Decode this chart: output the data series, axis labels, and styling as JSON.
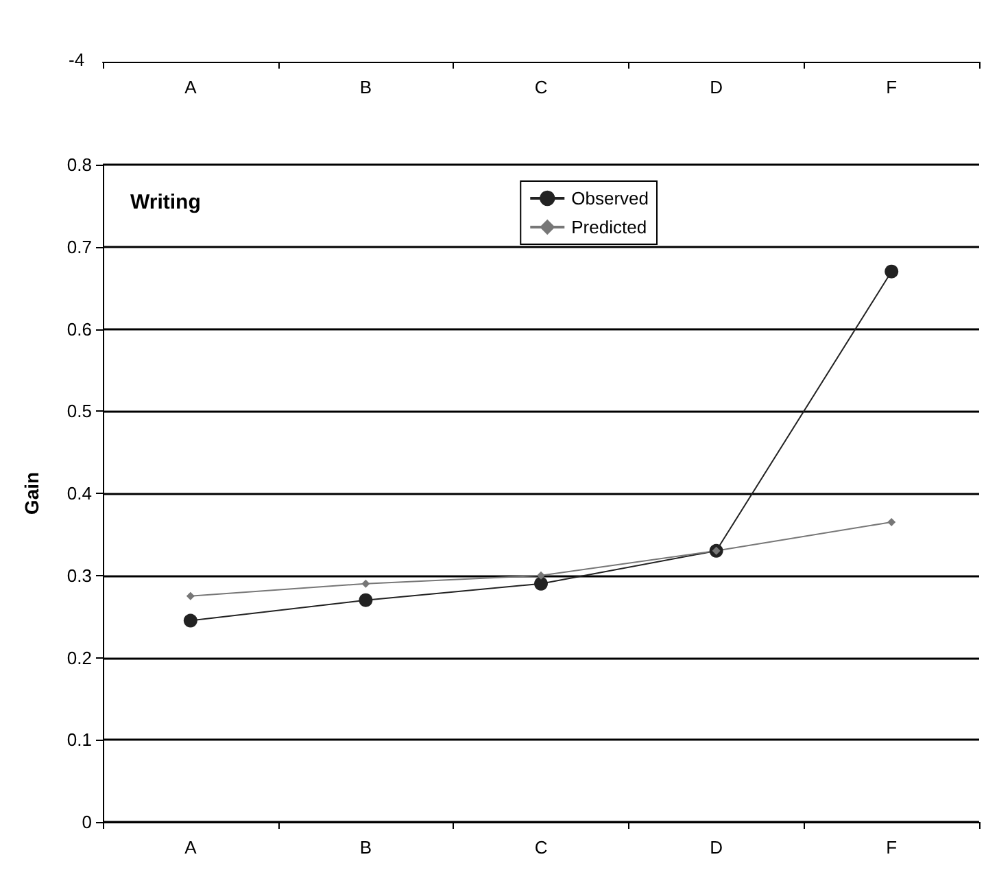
{
  "chart_data": [
    {
      "type": "other",
      "categories": [
        "A",
        "B",
        "C",
        "D",
        "F"
      ],
      "annotations": [
        "-4"
      ]
    },
    {
      "type": "line",
      "title": "Writing",
      "ylabel": "Gain",
      "categories": [
        "A",
        "B",
        "C",
        "D",
        "F"
      ],
      "ylim": [
        0,
        0.8
      ],
      "yticks": [
        0,
        0.1,
        0.2,
        0.3,
        0.4,
        0.5,
        0.6,
        0.7,
        0.8
      ],
      "grid": "y",
      "legend": "top right",
      "series": [
        {
          "name": "Observed",
          "color": "#222222",
          "marker": "circle",
          "values": [
            0.245,
            0.27,
            0.29,
            0.33,
            0.67
          ]
        },
        {
          "name": "Predicted",
          "color": "#777777",
          "marker": "diamond",
          "values": [
            0.275,
            0.29,
            0.3,
            0.33,
            0.365
          ]
        }
      ]
    }
  ]
}
